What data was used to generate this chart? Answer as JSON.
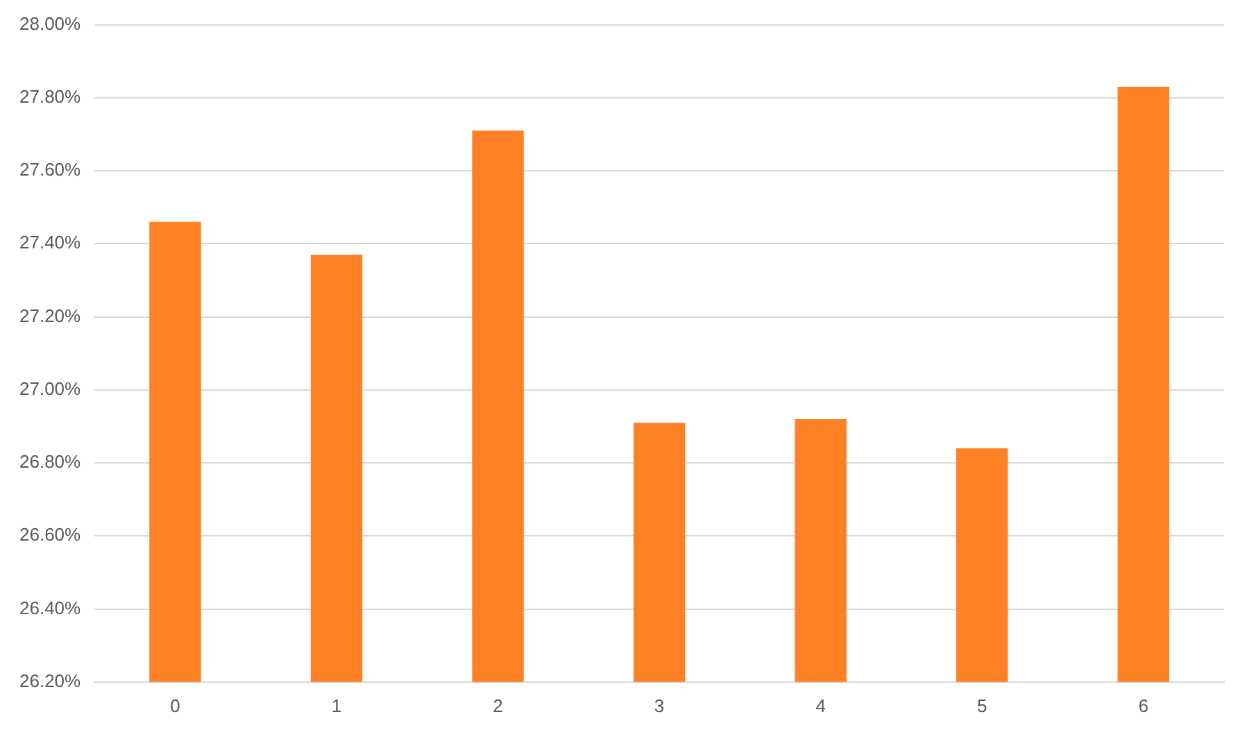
{
  "chart_data": {
    "type": "bar",
    "categories": [
      "0",
      "1",
      "2",
      "3",
      "4",
      "5",
      "6"
    ],
    "values": [
      27.46,
      27.37,
      27.71,
      26.91,
      26.92,
      26.84,
      27.83
    ],
    "color": "#ff8125",
    "ylim": [
      26.2,
      28.0
    ],
    "yticks": [
      {
        "value": 26.2,
        "label": "26.20%"
      },
      {
        "value": 26.4,
        "label": "26.40%"
      },
      {
        "value": 26.6,
        "label": "26.60%"
      },
      {
        "value": 26.8,
        "label": "26.80%"
      },
      {
        "value": 27.0,
        "label": "27.00%"
      },
      {
        "value": 27.2,
        "label": "27.20%"
      },
      {
        "value": 27.4,
        "label": "27.40%"
      },
      {
        "value": 27.6,
        "label": "27.60%"
      },
      {
        "value": 27.8,
        "label": "27.80%"
      },
      {
        "value": 28.0,
        "label": "28.00%"
      }
    ],
    "grid": "y"
  }
}
